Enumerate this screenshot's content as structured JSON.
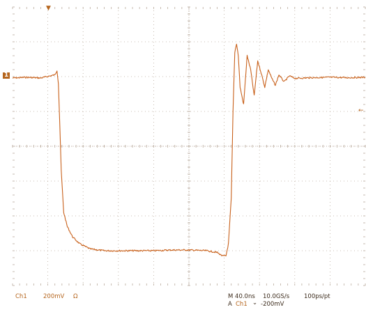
{
  "colors": {
    "trace": "#c8601a",
    "grid": "#b8a99b",
    "readout": "#b5651d",
    "readout_dark": "#3b2a1a"
  },
  "markers": {
    "trigger_position": "▼",
    "channel_ground": "1",
    "trigger_level": "←"
  },
  "readouts": {
    "channel": "Ch1",
    "volts_per_div": "200mV",
    "coupling_symbol": "Ω",
    "timebase": "M 40.0ns",
    "sample_rate": "10.0GS/s",
    "resolution": "100ps/pt",
    "trigger_prefix": "A",
    "trigger_source": "Ch1",
    "trigger_slope": "⌄",
    "trigger_level": "-200mV"
  },
  "chart_data": {
    "type": "line",
    "title": "",
    "xlabel": "",
    "ylabel": "",
    "x_divisions": 10,
    "y_divisions": 8,
    "xlim": [
      0,
      10
    ],
    "ylim": [
      -4,
      4
    ],
    "grid": true,
    "series": [
      {
        "values_desc": "",
        "x": [
          0,
          0.4,
          0.8,
          1.2,
          1.26,
          1.3,
          1.34,
          1.38,
          1.45,
          1.55,
          1.7,
          1.9,
          2.2,
          2.6,
          3.0,
          3.5,
          4.0,
          4.5,
          5.0,
          5.5,
          5.8,
          5.95,
          6.05,
          6.12,
          6.2,
          6.25,
          6.3,
          6.35,
          6.4,
          6.45,
          6.55,
          6.65,
          6.75,
          6.85,
          6.95,
          7.05,
          7.15,
          7.25,
          7.35,
          7.45,
          7.55,
          7.7,
          7.85,
          8.0,
          8.5,
          9.0,
          9.5,
          10.0
        ],
        "y": [
          1.96,
          1.98,
          1.96,
          2.05,
          2.18,
          1.8,
          0.6,
          -0.7,
          -1.9,
          -2.3,
          -2.6,
          -2.8,
          -2.95,
          -3.0,
          -3.0,
          -3.0,
          -3.0,
          -2.98,
          -2.98,
          -3.0,
          -3.05,
          -3.15,
          -3.15,
          -2.8,
          -1.5,
          1.0,
          2.7,
          2.95,
          2.6,
          1.7,
          1.2,
          2.6,
          2.2,
          1.45,
          2.45,
          2.1,
          1.7,
          2.2,
          1.95,
          1.75,
          2.05,
          1.85,
          2.02,
          1.95,
          1.97,
          1.98,
          1.97,
          1.98
        ]
      }
    ]
  }
}
